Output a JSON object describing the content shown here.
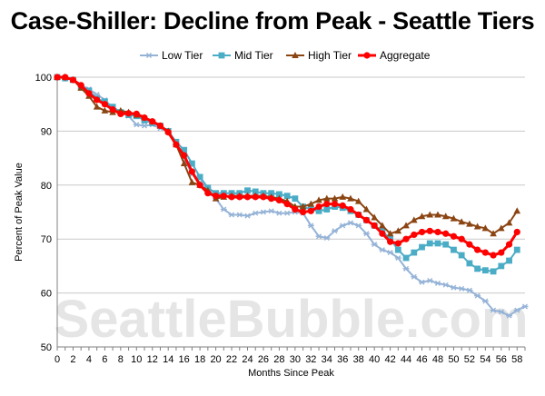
{
  "chart_data": {
    "type": "line",
    "title": "Case-Shiller: Decline from Peak - Seattle Tiers",
    "xlabel": "Months Since Peak",
    "ylabel": "Percent of Peak Value",
    "xlim": [
      0,
      59
    ],
    "ylim": [
      50,
      100
    ],
    "xticks": [
      0,
      2,
      4,
      6,
      8,
      10,
      12,
      14,
      16,
      18,
      20,
      22,
      24,
      26,
      28,
      30,
      32,
      34,
      36,
      38,
      40,
      42,
      44,
      46,
      48,
      50,
      52,
      54,
      56,
      58
    ],
    "yticks": [
      50,
      60,
      70,
      80,
      90,
      100
    ],
    "grid": true,
    "legend_position": "top",
    "watermark": "SeattleBubble.com",
    "series": [
      {
        "name": "Low Tier",
        "color": "#95b3d7",
        "marker": "star",
        "values": [
          100,
          99.8,
          99.6,
          98.5,
          97.8,
          96.8,
          95.8,
          94.3,
          93.5,
          92.8,
          91.2,
          91.0,
          91.2,
          90.5,
          90.0,
          87.5,
          85.0,
          82.0,
          80.5,
          79.5,
          77.5,
          75.5,
          74.5,
          74.5,
          74.3,
          74.8,
          75.0,
          75.2,
          74.8,
          74.8,
          75.0,
          74.8,
          72.5,
          70.5,
          70.2,
          71.5,
          72.5,
          73.0,
          72.5,
          71.0,
          69.0,
          68.0,
          67.5,
          66.5,
          64.5,
          63.0,
          62.0,
          62.3,
          61.8,
          61.5,
          61.0,
          60.8,
          60.5,
          59.5,
          58.5,
          56.8,
          56.5,
          55.8,
          56.8,
          57.5
        ]
      },
      {
        "name": "Mid Tier",
        "color": "#4bacc6",
        "marker": "square",
        "values": [
          100,
          99.8,
          99.5,
          98.2,
          97.5,
          96.0,
          95.5,
          94.5,
          93.5,
          93.0,
          92.8,
          92.0,
          91.5,
          91.0,
          90.0,
          88.0,
          86.5,
          84.0,
          81.5,
          79.5,
          78.5,
          78.5,
          78.5,
          78.5,
          79.0,
          78.8,
          78.5,
          78.5,
          78.3,
          78.0,
          77.5,
          76.0,
          75.5,
          75.2,
          75.5,
          76.0,
          75.8,
          75.2,
          74.5,
          73.5,
          72.5,
          71.5,
          70.0,
          68.0,
          66.5,
          67.5,
          68.5,
          69.2,
          69.2,
          69.0,
          68.0,
          67.0,
          65.5,
          64.5,
          64.2,
          64.0,
          65.0,
          66.0,
          68.0,
          null
        ]
      },
      {
        "name": "High Tier",
        "color": "#8b4513",
        "marker": "triangle",
        "values": [
          100,
          100,
          99.5,
          98.0,
          96.5,
          94.5,
          93.8,
          93.5,
          93.8,
          93.5,
          93.0,
          92.5,
          91.8,
          91.0,
          90.0,
          87.5,
          84.0,
          80.5,
          80.0,
          79.0,
          77.5,
          77.8,
          78.0,
          78.0,
          78.0,
          78.0,
          78.0,
          77.8,
          77.5,
          77.0,
          76.0,
          76.0,
          76.5,
          77.2,
          77.5,
          77.5,
          77.8,
          77.5,
          77.0,
          75.5,
          74.0,
          72.5,
          71.0,
          71.5,
          72.5,
          73.5,
          74.2,
          74.5,
          74.5,
          74.2,
          73.8,
          73.2,
          72.8,
          72.3,
          72.0,
          71.0,
          72.0,
          73.0,
          75.2,
          null
        ]
      },
      {
        "name": "Aggregate",
        "color": "#ff0000",
        "marker": "circle",
        "values": [
          100,
          100,
          99.5,
          98.5,
          97.0,
          95.8,
          95.0,
          94.0,
          93.2,
          93.3,
          93.2,
          92.5,
          91.8,
          91.0,
          89.8,
          87.5,
          85.5,
          82.5,
          80.0,
          78.5,
          78.0,
          78.0,
          77.8,
          77.8,
          77.8,
          77.8,
          77.8,
          77.5,
          77.2,
          76.5,
          75.5,
          75.0,
          75.2,
          76.0,
          76.5,
          76.5,
          76.2,
          75.5,
          74.5,
          73.5,
          72.5,
          71.0,
          69.5,
          69.2,
          70.0,
          70.8,
          71.3,
          71.5,
          71.3,
          71.0,
          70.5,
          70.0,
          69.0,
          68.0,
          67.5,
          67.0,
          67.5,
          69.0,
          71.3,
          null
        ]
      }
    ]
  }
}
